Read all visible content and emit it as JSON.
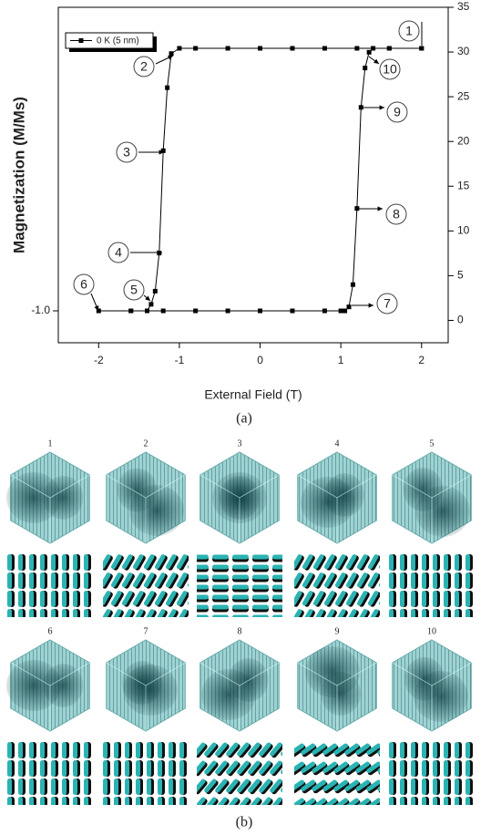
{
  "chart_data": {
    "type": "line",
    "ylabel": "Magnetization (M/Ms)",
    "xlabel": "External Field (T)",
    "x": [
      2,
      1.6,
      1.2,
      0.8,
      0.4,
      0,
      -0.4,
      -0.8,
      -1.0,
      -1.1,
      -1.15,
      -1.2,
      -1.25,
      -1.3,
      -1.35,
      -1.4,
      -1.6,
      -2.0,
      -1.6,
      -1.2,
      -0.8,
      -0.4,
      0,
      0.4,
      0.8,
      1.0,
      1.05,
      1.1,
      1.15,
      1.2,
      1.25,
      1.3,
      1.35,
      1.4,
      1.6,
      2.0
    ],
    "series": [
      {
        "name": "0 K (5 nm)",
        "color": "#000000",
        "values": [
          1,
          1,
          1,
          1,
          1,
          1,
          1,
          1,
          1,
          0.96,
          0.7,
          0.22,
          -0.56,
          -0.85,
          -0.95,
          -1,
          -1,
          -1,
          -1,
          -1,
          -1,
          -1,
          -1,
          -1,
          -1,
          -1,
          -1,
          -0.97,
          -0.8,
          -0.22,
          0.55,
          0.85,
          0.97,
          1,
          1,
          1
        ]
      }
    ],
    "xlim": [
      -2.5,
      2.33
    ],
    "xticks": [
      -2,
      -1,
      0,
      1,
      2
    ],
    "ylim": [
      -1.243,
      1.3125
    ],
    "yticks": [
      {
        "value": -1,
        "label": "-1.0"
      }
    ],
    "y2lim": [
      -2.5,
      35
    ],
    "y2ticks": [
      0,
      5,
      10,
      15,
      20,
      25,
      30,
      35
    ],
    "annotations": [
      "1",
      "2",
      "3",
      "4",
      "5",
      "6",
      "7",
      "8",
      "9",
      "10"
    ]
  },
  "figure": {
    "caption_a": "(a)",
    "caption_b": "(b)",
    "panels": [
      "1",
      "2",
      "3",
      "4",
      "5",
      "6",
      "7",
      "8",
      "9",
      "10"
    ]
  }
}
